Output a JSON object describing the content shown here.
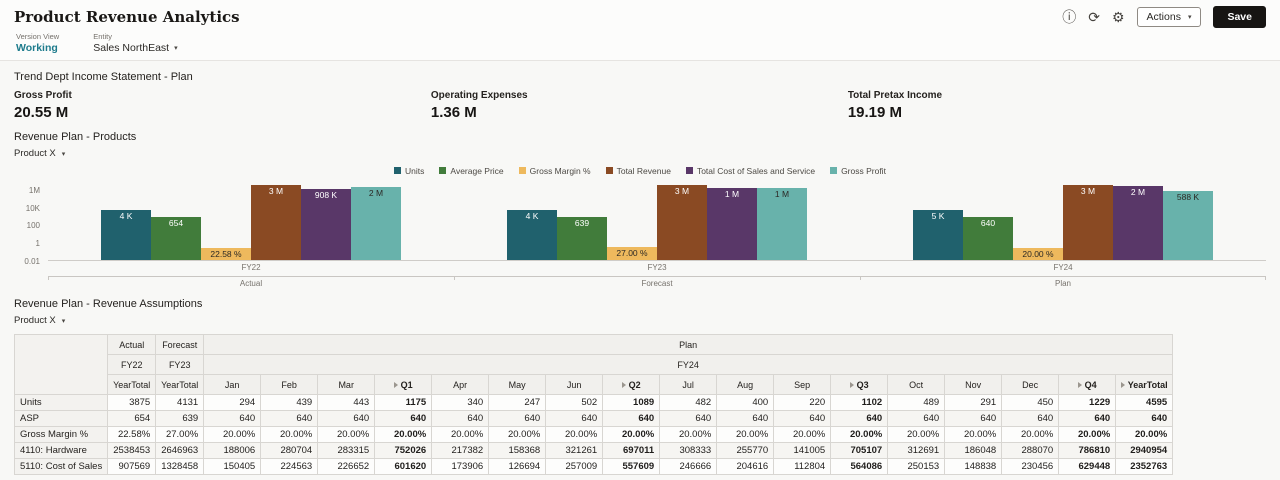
{
  "header": {
    "title": "Product Revenue Analytics",
    "actions_label": "Actions",
    "save_label": "Save"
  },
  "pov": {
    "version_label": "Version View",
    "version_value": "Working",
    "entity_label": "Entity",
    "entity_value": "Sales NorthEast"
  },
  "kpi_section": {
    "title": "Trend Dept Income Statement - Plan",
    "tiles": [
      {
        "label": "Gross Profit",
        "value": "20.55 M"
      },
      {
        "label": "Operating Expenses",
        "value": "1.36 M"
      },
      {
        "label": "Total Pretax Income",
        "value": "19.19 M"
      }
    ]
  },
  "chart_section": {
    "title": "Revenue Plan - Products",
    "selector": "Product X"
  },
  "chart_data": {
    "type": "bar",
    "scale": "log",
    "title": "Revenue Plan - Products",
    "categories": [
      "FY22",
      "FY23",
      "FY24"
    ],
    "category_sublabels": [
      "Actual",
      "Forecast",
      "Plan"
    ],
    "y_ticks": [
      "1M",
      "10K",
      "100",
      "1",
      "0.01"
    ],
    "y_tick_values": [
      1000000,
      10000,
      100,
      1,
      0.01
    ],
    "ylim_log10": [
      -2,
      7
    ],
    "legend_position": "top-center",
    "series": [
      {
        "name": "Units",
        "color": "#20616d",
        "label_color": "#ffffff",
        "values": [
          3875,
          4131,
          4595
        ],
        "labels": [
          "4 K",
          "4 K",
          "5 K"
        ]
      },
      {
        "name": "Average Price",
        "color": "#417c3b",
        "label_color": "#ffffff",
        "values": [
          654,
          639,
          640
        ],
        "labels": [
          "654",
          "639",
          "640"
        ]
      },
      {
        "name": "Gross Margin %",
        "color": "#eeb95d",
        "label_color": "#2b2824",
        "values": [
          0.2258,
          0.27,
          0.2
        ],
        "labels": [
          "22.58 %",
          "27.00 %",
          "20.00 %"
        ]
      },
      {
        "name": "Total Revenue",
        "color": "#8a4a23",
        "label_color": "#ffffff",
        "values": [
          2538453,
          2646963,
          2940954
        ],
        "labels": [
          "3 M",
          "3 M",
          "3 M"
        ]
      },
      {
        "name": "Total Cost of Sales and Service",
        "color": "#593768",
        "label_color": "#ffffff",
        "values": [
          907569,
          1328458,
          2352763
        ],
        "labels": [
          "908 K",
          "1 M",
          "2 M"
        ]
      },
      {
        "name": "Gross Profit",
        "color": "#68b2ab",
        "label_color": "#2b2824",
        "values": [
          1630884,
          1318505,
          588191
        ],
        "labels": [
          "2 M",
          "1 M",
          "588 K"
        ]
      }
    ]
  },
  "table_section": {
    "title": "Revenue Plan - Revenue Assumptions",
    "selector": "Product X",
    "scenarios": [
      "Actual",
      "Forecast",
      "Plan"
    ],
    "years": [
      "FY22",
      "FY23",
      "FY24"
    ],
    "columns": [
      "YearTotal",
      "YearTotal",
      "Jan",
      "Feb",
      "Mar",
      "Q1",
      "Apr",
      "May",
      "Jun",
      "Q2",
      "Jul",
      "Aug",
      "Sep",
      "Q3",
      "Oct",
      "Nov",
      "Dec",
      "Q4",
      "YearTotal"
    ],
    "bold_columns": [
      5,
      9,
      13,
      17,
      18
    ],
    "expand_columns": [
      5,
      9,
      13,
      17,
      18
    ],
    "rows": [
      {
        "label": "Units",
        "values": [
          "3875",
          "4131",
          "294",
          "439",
          "443",
          "1175",
          "340",
          "247",
          "502",
          "1089",
          "482",
          "400",
          "220",
          "1102",
          "489",
          "291",
          "450",
          "1229",
          "4595"
        ]
      },
      {
        "label": "ASP",
        "values": [
          "654",
          "639",
          "640",
          "640",
          "640",
          "640",
          "640",
          "640",
          "640",
          "640",
          "640",
          "640",
          "640",
          "640",
          "640",
          "640",
          "640",
          "640",
          "640"
        ]
      },
      {
        "label": "Gross Margin %",
        "values": [
          "22.58%",
          "27.00%",
          "20.00%",
          "20.00%",
          "20.00%",
          "20.00%",
          "20.00%",
          "20.00%",
          "20.00%",
          "20.00%",
          "20.00%",
          "20.00%",
          "20.00%",
          "20.00%",
          "20.00%",
          "20.00%",
          "20.00%",
          "20.00%",
          "20.00%"
        ]
      },
      {
        "label": "4110: Hardware",
        "values": [
          "2538453",
          "2646963",
          "188006",
          "280704",
          "283315",
          "752026",
          "217382",
          "158368",
          "321261",
          "697011",
          "308333",
          "255770",
          "141005",
          "705107",
          "312691",
          "186048",
          "288070",
          "786810",
          "2940954"
        ]
      },
      {
        "label": "5110: Cost of Sales",
        "values": [
          "907569",
          "1328458",
          "150405",
          "224563",
          "226652",
          "601620",
          "173906",
          "126694",
          "257009",
          "557609",
          "246666",
          "204616",
          "112804",
          "564086",
          "250153",
          "148838",
          "230456",
          "629448",
          "2352763"
        ]
      }
    ]
  },
  "icons": {
    "info": "ⓘ",
    "refresh": "⟳",
    "gear": "⚙",
    "caret": "▾"
  }
}
